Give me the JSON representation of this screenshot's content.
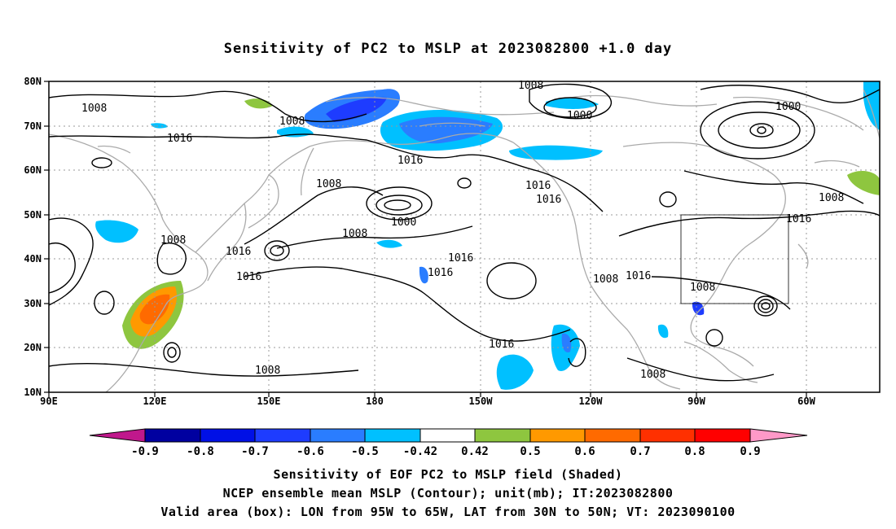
{
  "title": "Sensitivity of PC2 to MSLP at 2023082800 +1.0 day",
  "map": {
    "lon_ticks": [
      "90E",
      "120E",
      "150E",
      "180",
      "150W",
      "120W",
      "90W",
      "60W"
    ],
    "lat_ticks": [
      "80N",
      "70N",
      "60N",
      "50N",
      "40N",
      "30N",
      "20N",
      "10N"
    ],
    "contour_labels": [
      {
        "text": "1008"
      },
      {
        "text": "1016"
      },
      {
        "text": "1008"
      },
      {
        "text": "1016"
      },
      {
        "text": "1008"
      },
      {
        "text": "1000"
      },
      {
        "text": "1008"
      },
      {
        "text": "1016"
      },
      {
        "text": "1008"
      },
      {
        "text": "1016"
      },
      {
        "text": "1016"
      },
      {
        "text": "1016"
      },
      {
        "text": "1016"
      },
      {
        "text": "1016"
      },
      {
        "text": "1008"
      },
      {
        "text": "1016"
      },
      {
        "text": "1016"
      },
      {
        "text": "1008"
      },
      {
        "text": "1008"
      },
      {
        "text": "1000"
      },
      {
        "text": "1000"
      },
      {
        "text": "1008"
      },
      {
        "text": "1016"
      },
      {
        "text": "1008"
      },
      {
        "text": "1008"
      }
    ],
    "valid_box": {
      "lon": [
        "95W",
        "65W"
      ],
      "lat": [
        "30N",
        "50N"
      ]
    }
  },
  "colorbar": {
    "labels": [
      "-0.9",
      "-0.8",
      "-0.7",
      "-0.6",
      "-0.5",
      "-0.42",
      "0.42",
      "0.5",
      "0.6",
      "0.7",
      "0.8",
      "0.9"
    ],
    "colors": [
      "#0000a0",
      "#0010e6",
      "#1e3cff",
      "#2a7dff",
      "#00c0ff",
      "#ffffff",
      "#8ec63f",
      "#ff9900",
      "#ff6a00",
      "#ff3000",
      "#ff0000"
    ],
    "low_extend_color": "#c0188c",
    "high_extend_color": "#ff99c8"
  },
  "captions": [
    "Sensitivity of EOF PC2 to MSLP field (Shaded)",
    "NCEP ensemble mean MSLP (Contour); unit(mb); IT:2023082800",
    "Valid area (box): LON from 95W to 65W, LAT from 30N to 50N; VT: 2023090100"
  ]
}
